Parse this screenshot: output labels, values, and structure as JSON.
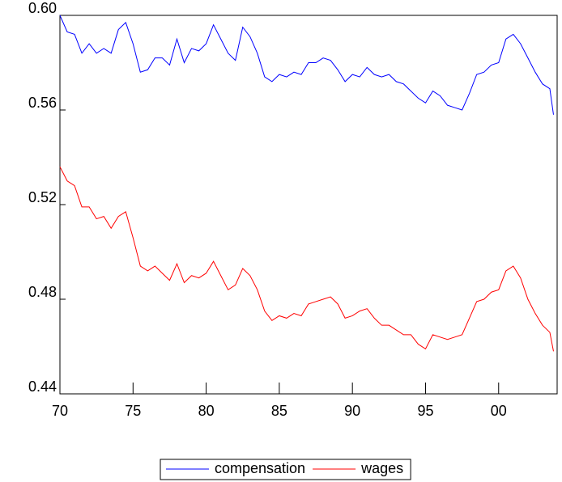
{
  "chart_data": {
    "type": "line",
    "x": [
      1970,
      1970.5,
      1971,
      1971.5,
      1972,
      1972.5,
      1973,
      1973.5,
      1974,
      1974.5,
      1975,
      1975.5,
      1976,
      1976.5,
      1977,
      1977.5,
      1978,
      1978.5,
      1979,
      1979.5,
      1980,
      1980.5,
      1981,
      1981.5,
      1982,
      1982.5,
      1983,
      1983.5,
      1984,
      1984.5,
      1985,
      1985.5,
      1986,
      1986.5,
      1987,
      1987.5,
      1988,
      1988.5,
      1989,
      1989.5,
      1990,
      1990.5,
      1991,
      1991.5,
      1992,
      1992.5,
      1993,
      1993.5,
      1994,
      1994.5,
      1995,
      1995.5,
      1996,
      1996.5,
      1997,
      1997.5,
      1998,
      1998.5,
      1999,
      1999.5,
      2000,
      2000.5,
      2001,
      2001.5,
      2002,
      2002.5,
      2003,
      2003.5,
      2003.75
    ],
    "series": [
      {
        "name": "compensation",
        "color": "#0000ff",
        "values": [
          0.6,
          0.593,
          0.592,
          0.584,
          0.588,
          0.584,
          0.586,
          0.584,
          0.594,
          0.597,
          0.588,
          0.576,
          0.577,
          0.582,
          0.582,
          0.579,
          0.59,
          0.58,
          0.586,
          0.585,
          0.588,
          0.596,
          0.59,
          0.584,
          0.581,
          0.595,
          0.591,
          0.584,
          0.574,
          0.572,
          0.575,
          0.574,
          0.576,
          0.575,
          0.58,
          0.58,
          0.582,
          0.581,
          0.577,
          0.572,
          0.575,
          0.574,
          0.578,
          0.575,
          0.574,
          0.575,
          0.572,
          0.571,
          0.568,
          0.565,
          0.563,
          0.568,
          0.566,
          0.562,
          0.561,
          0.56,
          0.567,
          0.575,
          0.576,
          0.579,
          0.58,
          0.59,
          0.592,
          0.588,
          0.582,
          0.576,
          0.571,
          0.569,
          0.558
        ]
      },
      {
        "name": "wages",
        "color": "#ff0000",
        "values": [
          0.536,
          0.53,
          0.528,
          0.519,
          0.519,
          0.514,
          0.515,
          0.51,
          0.515,
          0.517,
          0.506,
          0.494,
          0.492,
          0.494,
          0.491,
          0.488,
          0.495,
          0.487,
          0.49,
          0.489,
          0.491,
          0.496,
          0.49,
          0.484,
          0.486,
          0.493,
          0.49,
          0.484,
          0.475,
          0.471,
          0.473,
          0.472,
          0.474,
          0.473,
          0.478,
          0.479,
          0.48,
          0.481,
          0.478,
          0.472,
          0.473,
          0.475,
          0.476,
          0.472,
          0.469,
          0.469,
          0.467,
          0.465,
          0.465,
          0.461,
          0.459,
          0.465,
          0.464,
          0.463,
          0.464,
          0.465,
          0.472,
          0.479,
          0.48,
          0.483,
          0.484,
          0.492,
          0.494,
          0.489,
          0.48,
          0.474,
          0.469,
          0.466,
          0.458
        ]
      }
    ],
    "xlim": [
      1970,
      2004
    ],
    "xticks": [
      {
        "value": 1970,
        "label": "70"
      },
      {
        "value": 1975,
        "label": "75"
      },
      {
        "value": 1980,
        "label": "80"
      },
      {
        "value": 1985,
        "label": "85"
      },
      {
        "value": 1990,
        "label": "90"
      },
      {
        "value": 1995,
        "label": "95"
      },
      {
        "value": 2000,
        "label": "00"
      }
    ],
    "ylim": [
      0.44,
      0.6
    ],
    "yticks": [
      {
        "value": 0.44,
        "label": "0.44"
      },
      {
        "value": 0.48,
        "label": "0.48"
      },
      {
        "value": 0.52,
        "label": "0.52"
      },
      {
        "value": 0.56,
        "label": "0.56"
      },
      {
        "value": 0.6,
        "label": "0.60"
      }
    ],
    "legend": "bottom"
  }
}
